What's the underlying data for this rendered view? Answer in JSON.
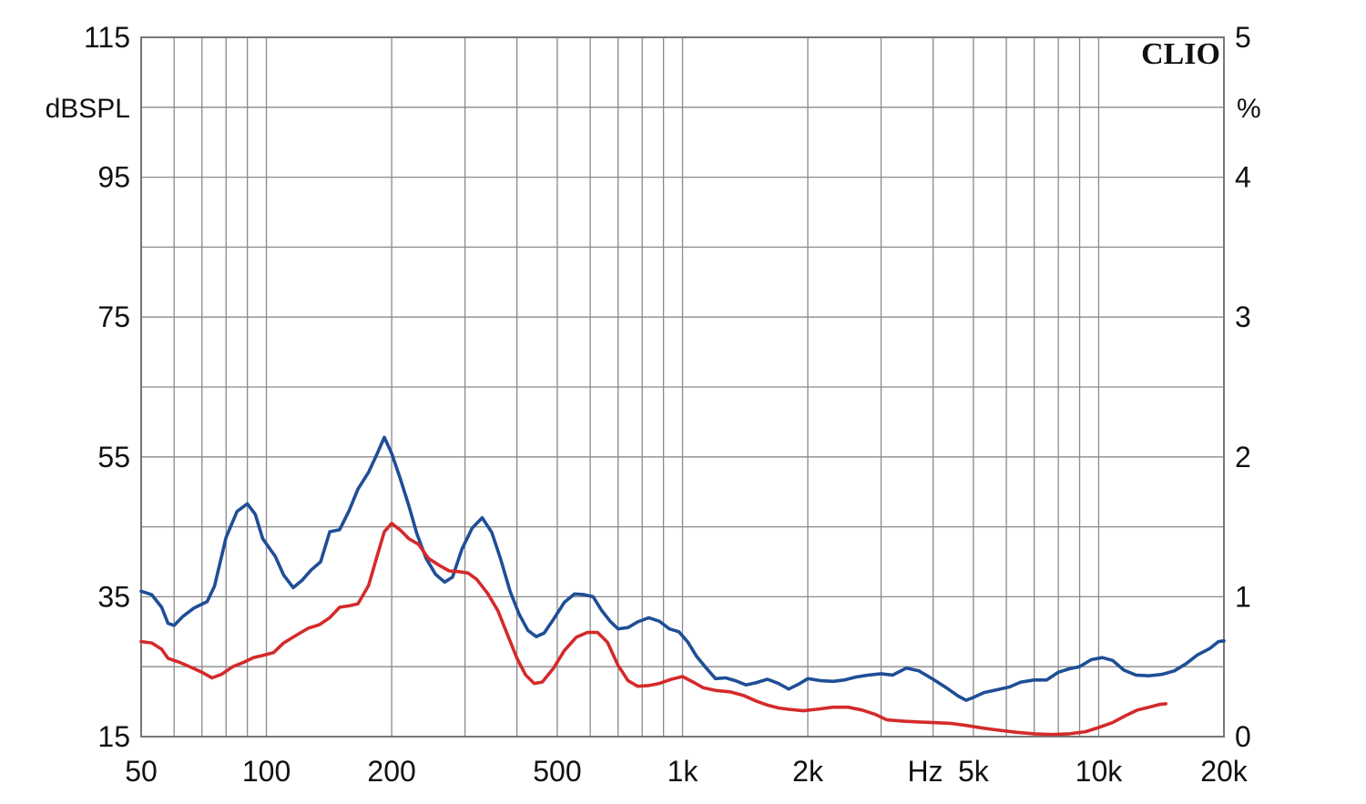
{
  "chart_data": {
    "type": "line",
    "logo": "CLIO",
    "left_axis": {
      "unit": "dBSPL",
      "ylim": [
        15,
        115
      ],
      "ticks": [
        115,
        95,
        75,
        55,
        35,
        15
      ]
    },
    "right_axis": {
      "unit": "%",
      "ylim": [
        0,
        5
      ],
      "ticks": [
        5,
        4,
        3,
        2,
        1,
        0
      ]
    },
    "x_axis": {
      "unit": "Hz",
      "scale": "log",
      "xlim": [
        50,
        20000
      ],
      "ticks": [
        {
          "value": 50,
          "label": "50"
        },
        {
          "value": 100,
          "label": "100"
        },
        {
          "value": 200,
          "label": "200"
        },
        {
          "value": 500,
          "label": "500"
        },
        {
          "value": 1000,
          "label": "1k"
        },
        {
          "value": 2000,
          "label": "2k"
        },
        {
          "value": 5000,
          "label": "5k"
        },
        {
          "value": 10000,
          "label": "10k"
        },
        {
          "value": 20000,
          "label": "20k"
        }
      ]
    },
    "grid": true,
    "series": [
      {
        "color": "#1f4e96",
        "points": [
          [
            50,
            35.8
          ],
          [
            53,
            35.3
          ],
          [
            56,
            33.5
          ],
          [
            58,
            31.2
          ],
          [
            60,
            30.9
          ],
          [
            63,
            32.2
          ],
          [
            67,
            33.4
          ],
          [
            72,
            34.3
          ],
          [
            75,
            36.5
          ],
          [
            80,
            43.5
          ],
          [
            85,
            47.2
          ],
          [
            90,
            48.3
          ],
          [
            94,
            46.8
          ],
          [
            98,
            43.3
          ],
          [
            105,
            40.8
          ],
          [
            110,
            38.1
          ],
          [
            116,
            36.3
          ],
          [
            122,
            37.4
          ],
          [
            128,
            38.8
          ],
          [
            135,
            40.0
          ],
          [
            142,
            44.3
          ],
          [
            150,
            44.6
          ],
          [
            158,
            47.3
          ],
          [
            166,
            50.4
          ],
          [
            176,
            52.8
          ],
          [
            184,
            55.3
          ],
          [
            192,
            57.8
          ],
          [
            200,
            55.5
          ],
          [
            210,
            51.8
          ],
          [
            220,
            48.0
          ],
          [
            230,
            44.0
          ],
          [
            242,
            40.5
          ],
          [
            255,
            38.2
          ],
          [
            268,
            37.1
          ],
          [
            280,
            37.8
          ],
          [
            295,
            41.8
          ],
          [
            312,
            44.8
          ],
          [
            330,
            46.3
          ],
          [
            348,
            44.2
          ],
          [
            365,
            40.5
          ],
          [
            385,
            35.8
          ],
          [
            405,
            32.5
          ],
          [
            425,
            30.2
          ],
          [
            445,
            29.3
          ],
          [
            465,
            29.8
          ],
          [
            490,
            31.8
          ],
          [
            520,
            34.2
          ],
          [
            550,
            35.4
          ],
          [
            580,
            35.3
          ],
          [
            610,
            35.0
          ],
          [
            640,
            33.0
          ],
          [
            670,
            31.5
          ],
          [
            700,
            30.4
          ],
          [
            740,
            30.6
          ],
          [
            780,
            31.4
          ],
          [
            830,
            32.0
          ],
          [
            880,
            31.5
          ],
          [
            930,
            30.4
          ],
          [
            980,
            30.0
          ],
          [
            1030,
            28.5
          ],
          [
            1080,
            26.5
          ],
          [
            1140,
            24.8
          ],
          [
            1200,
            23.3
          ],
          [
            1270,
            23.4
          ],
          [
            1340,
            23.0
          ],
          [
            1420,
            22.4
          ],
          [
            1500,
            22.7
          ],
          [
            1600,
            23.2
          ],
          [
            1700,
            22.6
          ],
          [
            1800,
            21.8
          ],
          [
            1900,
            22.5
          ],
          [
            2000,
            23.3
          ],
          [
            2150,
            23.0
          ],
          [
            2300,
            22.9
          ],
          [
            2450,
            23.1
          ],
          [
            2600,
            23.5
          ],
          [
            2800,
            23.8
          ],
          [
            3000,
            24.0
          ],
          [
            3200,
            23.8
          ],
          [
            3450,
            24.8
          ],
          [
            3700,
            24.4
          ],
          [
            4000,
            23.2
          ],
          [
            4300,
            22.0
          ],
          [
            4600,
            20.8
          ],
          [
            4800,
            20.2
          ],
          [
            5000,
            20.6
          ],
          [
            5300,
            21.3
          ],
          [
            5700,
            21.7
          ],
          [
            6100,
            22.1
          ],
          [
            6500,
            22.8
          ],
          [
            7000,
            23.1
          ],
          [
            7500,
            23.1
          ],
          [
            8000,
            24.2
          ],
          [
            8500,
            24.7
          ],
          [
            9000,
            25.0
          ],
          [
            9600,
            26.0
          ],
          [
            10200,
            26.3
          ],
          [
            10800,
            25.9
          ],
          [
            11500,
            24.5
          ],
          [
            12300,
            23.8
          ],
          [
            13200,
            23.7
          ],
          [
            14200,
            23.9
          ],
          [
            15200,
            24.4
          ],
          [
            16200,
            25.4
          ],
          [
            17300,
            26.7
          ],
          [
            18500,
            27.6
          ],
          [
            19400,
            28.6
          ],
          [
            20000,
            28.7
          ]
        ]
      },
      {
        "color": "#d42a2a",
        "points": [
          [
            50,
            28.6
          ],
          [
            53,
            28.4
          ],
          [
            56,
            27.5
          ],
          [
            58,
            26.2
          ],
          [
            62,
            25.6
          ],
          [
            66,
            24.9
          ],
          [
            70,
            24.2
          ],
          [
            74,
            23.4
          ],
          [
            78,
            23.9
          ],
          [
            83,
            25.0
          ],
          [
            88,
            25.6
          ],
          [
            93,
            26.3
          ],
          [
            98,
            26.6
          ],
          [
            104,
            27.0
          ],
          [
            110,
            28.4
          ],
          [
            118,
            29.5
          ],
          [
            126,
            30.5
          ],
          [
            134,
            31.0
          ],
          [
            142,
            32.0
          ],
          [
            150,
            33.5
          ],
          [
            158,
            33.7
          ],
          [
            166,
            34.0
          ],
          [
            176,
            36.6
          ],
          [
            184,
            40.6
          ],
          [
            192,
            44.3
          ],
          [
            200,
            45.5
          ],
          [
            210,
            44.5
          ],
          [
            220,
            43.3
          ],
          [
            232,
            42.5
          ],
          [
            245,
            40.5
          ],
          [
            260,
            39.5
          ],
          [
            275,
            38.7
          ],
          [
            290,
            38.6
          ],
          [
            305,
            38.4
          ],
          [
            320,
            37.5
          ],
          [
            340,
            35.5
          ],
          [
            360,
            33.0
          ],
          [
            380,
            29.5
          ],
          [
            400,
            26.2
          ],
          [
            420,
            23.8
          ],
          [
            440,
            22.6
          ],
          [
            460,
            22.8
          ],
          [
            490,
            24.8
          ],
          [
            520,
            27.3
          ],
          [
            555,
            29.2
          ],
          [
            590,
            29.9
          ],
          [
            625,
            29.9
          ],
          [
            660,
            28.5
          ],
          [
            700,
            25.2
          ],
          [
            740,
            23.0
          ],
          [
            780,
            22.2
          ],
          [
            830,
            22.3
          ],
          [
            880,
            22.6
          ],
          [
            940,
            23.2
          ],
          [
            1000,
            23.6
          ],
          [
            1060,
            22.8
          ],
          [
            1120,
            22.0
          ],
          [
            1200,
            21.6
          ],
          [
            1300,
            21.4
          ],
          [
            1400,
            20.9
          ],
          [
            1500,
            20.1
          ],
          [
            1600,
            19.5
          ],
          [
            1700,
            19.1
          ],
          [
            1800,
            18.9
          ],
          [
            1950,
            18.7
          ],
          [
            2100,
            18.9
          ],
          [
            2300,
            19.2
          ],
          [
            2500,
            19.2
          ],
          [
            2700,
            18.8
          ],
          [
            2900,
            18.2
          ],
          [
            3100,
            17.4
          ],
          [
            3400,
            17.2
          ],
          [
            3700,
            17.1
          ],
          [
            4000,
            17.0
          ],
          [
            4400,
            16.9
          ],
          [
            4800,
            16.6
          ],
          [
            5300,
            16.2
          ],
          [
            5800,
            15.9
          ],
          [
            6400,
            15.6
          ],
          [
            7000,
            15.4
          ],
          [
            7700,
            15.3
          ],
          [
            8500,
            15.4
          ],
          [
            9300,
            15.7
          ],
          [
            10000,
            16.3
          ],
          [
            10800,
            17.0
          ],
          [
            11600,
            18.0
          ],
          [
            12400,
            18.8
          ],
          [
            13200,
            19.2
          ],
          [
            14000,
            19.6
          ],
          [
            14500,
            19.7
          ]
        ]
      }
    ]
  }
}
